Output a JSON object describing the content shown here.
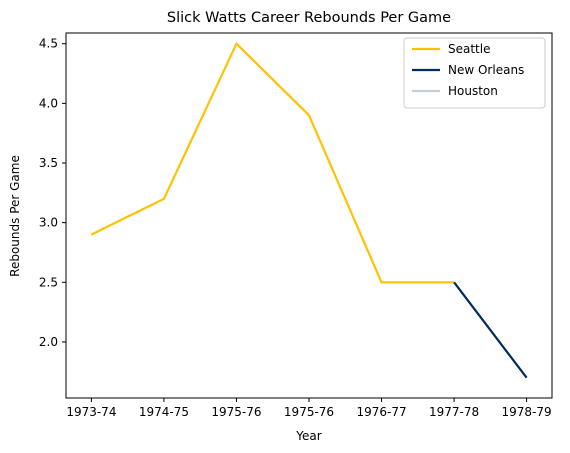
{
  "chart_data": {
    "type": "line",
    "title": "Slick Watts Career Rebounds Per Game",
    "xlabel": "Year",
    "ylabel": "Rebounds Per Game",
    "x_ticks": [
      "1973-74",
      "1974-75",
      "1975-76",
      "1975-76",
      "1976-77",
      "1977-78",
      "1978-79"
    ],
    "x_range": [
      -0.35,
      6.35
    ],
    "ylim": [
      1.53,
      4.59
    ],
    "y_ticks": [
      2.0,
      2.5,
      3.0,
      3.5,
      4.0,
      4.5
    ],
    "grid": false,
    "legend_position": "top-right",
    "series": [
      {
        "name": "Seattle",
        "color": "#FFC200",
        "x": [
          0,
          1,
          2,
          3,
          4,
          5
        ],
        "y": [
          2.9,
          3.2,
          4.5,
          3.9,
          2.5,
          2.5
        ]
      },
      {
        "name": "New Orleans",
        "color": "#002B5C",
        "x": [
          5,
          6
        ],
        "y": [
          2.5,
          1.7
        ]
      },
      {
        "name": "Houston",
        "color": "#C4CED4",
        "x": [],
        "y": []
      }
    ]
  }
}
